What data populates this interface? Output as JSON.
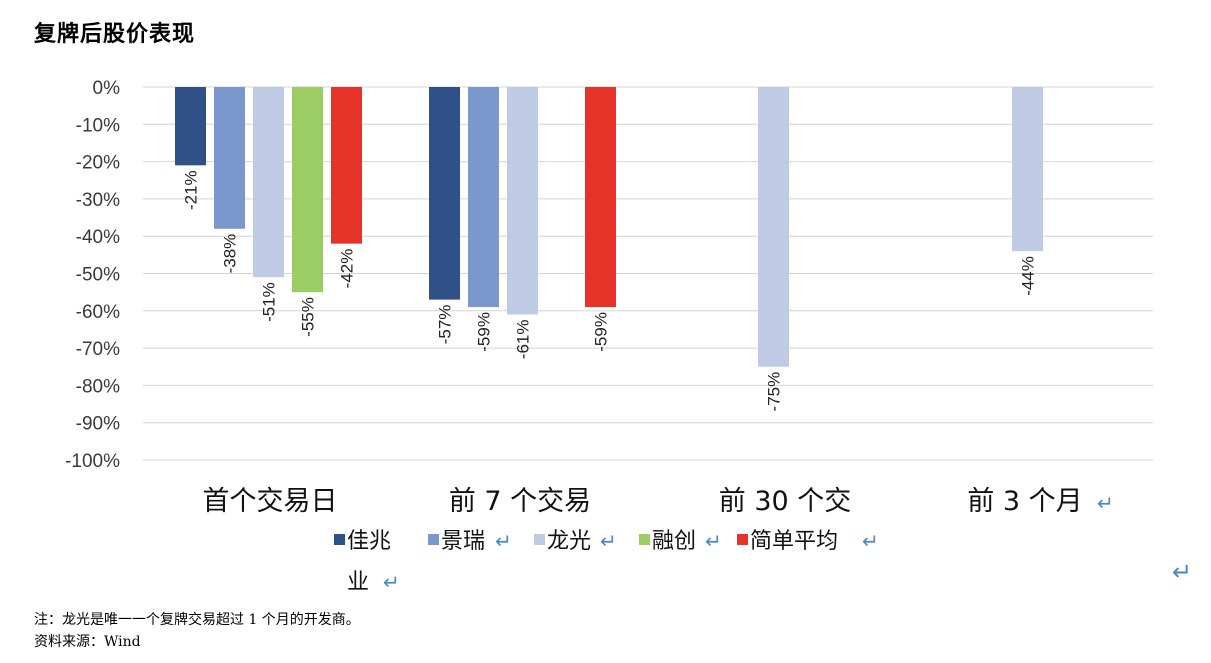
{
  "title": "复牌后股价表现",
  "notes": {
    "note": "注：龙光是唯一一个复牌交易超过 1 个月的开发商。",
    "source": "资料来源：Wind"
  },
  "return_mark": "↵",
  "chart_data": {
    "type": "bar",
    "title": "",
    "xlabel": "",
    "ylabel": "",
    "ylim": [
      -100,
      0
    ],
    "y_ticks": [
      "0%",
      "-10%",
      "-20%",
      "-30%",
      "-40%",
      "-50%",
      "-60%",
      "-70%",
      "-80%",
      "-90%",
      "-100%"
    ],
    "categories": [
      "首个交易日",
      "前 7 个交易",
      "前 30 个交",
      "前 3 个月"
    ],
    "grid": true,
    "legend_position": "bottom",
    "series": [
      {
        "name": "佳兆业",
        "color": "#2f5188",
        "values": [
          -21,
          -57,
          null,
          null
        ],
        "labels": [
          "-21%",
          "-57%",
          "",
          ""
        ]
      },
      {
        "name": "景瑞",
        "color": "#7b98cc",
        "values": [
          -38,
          -59,
          null,
          null
        ],
        "labels": [
          "-38%",
          "-59%",
          "",
          ""
        ]
      },
      {
        "name": "龙光",
        "color": "#bfcbe5",
        "values": [
          -51,
          -61,
          -75,
          -44
        ],
        "labels": [
          "-51%",
          "-61%",
          "-75%",
          "-44%"
        ]
      },
      {
        "name": "融创",
        "color": "#9ccd64",
        "values": [
          -55,
          null,
          null,
          null
        ],
        "labels": [
          "-55%",
          "",
          "",
          ""
        ]
      },
      {
        "name": "简单平均",
        "color": "#e6332a",
        "values": [
          -42,
          -59,
          null,
          null
        ],
        "labels": [
          "-42%",
          "-59%",
          "",
          ""
        ]
      }
    ]
  }
}
